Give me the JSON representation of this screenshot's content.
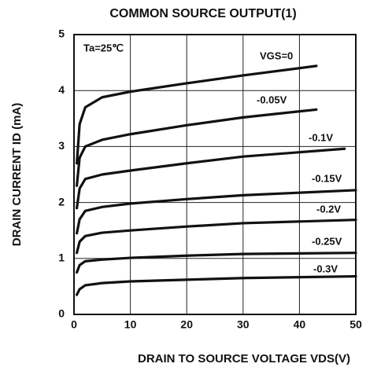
{
  "chart_data": {
    "type": "line",
    "title": "COMMON SOURCE OUTPUT(1)",
    "xlabel": "DRAIN TO SOURCE VOLTAGE  VDS(V)",
    "ylabel": "DRAIN CURRENT  ID (mA)",
    "annotation": "Ta=25℃",
    "xlim": [
      0,
      50
    ],
    "ylim": [
      0,
      5
    ],
    "xticks": [
      0,
      10,
      20,
      30,
      40,
      50
    ],
    "yticks": [
      0,
      1,
      2,
      3,
      4,
      5
    ],
    "grid": true,
    "series": [
      {
        "name": "VGS=0",
        "color": "#111111",
        "x": [
          0.5,
          1,
          2,
          5,
          10,
          20,
          30,
          43
        ],
        "values": [
          2.7,
          3.4,
          3.7,
          3.88,
          3.98,
          4.13,
          4.27,
          4.44
        ]
      },
      {
        "name": "-0.05V",
        "color": "#111111",
        "x": [
          0.5,
          1,
          2,
          5,
          10,
          20,
          30,
          43
        ],
        "values": [
          2.3,
          2.8,
          3.0,
          3.12,
          3.22,
          3.38,
          3.52,
          3.66
        ]
      },
      {
        "name": "-0.1V",
        "color": "#111111",
        "x": [
          0.5,
          1,
          2,
          5,
          10,
          20,
          30,
          48
        ],
        "values": [
          1.9,
          2.25,
          2.42,
          2.5,
          2.57,
          2.7,
          2.82,
          2.96
        ]
      },
      {
        "name": "-0.15V",
        "color": "#111111",
        "x": [
          0.5,
          1,
          2,
          5,
          10,
          20,
          30,
          50
        ],
        "values": [
          1.45,
          1.7,
          1.85,
          1.92,
          1.98,
          2.06,
          2.13,
          2.22
        ]
      },
      {
        "name": "-0.2V",
        "color": "#111111",
        "x": [
          0.5,
          1,
          2,
          5,
          10,
          20,
          30,
          50
        ],
        "values": [
          1.1,
          1.3,
          1.4,
          1.46,
          1.5,
          1.57,
          1.63,
          1.69
        ]
      },
      {
        "name": "-0.25V",
        "color": "#111111",
        "x": [
          0.5,
          1,
          2,
          5,
          10,
          20,
          30,
          50
        ],
        "values": [
          0.75,
          0.88,
          0.95,
          0.98,
          1.01,
          1.05,
          1.08,
          1.1
        ]
      },
      {
        "name": "-0.3V",
        "color": "#111111",
        "x": [
          0.5,
          1,
          2,
          5,
          10,
          20,
          30,
          50
        ],
        "values": [
          0.35,
          0.45,
          0.52,
          0.56,
          0.59,
          0.62,
          0.65,
          0.68
        ]
      }
    ]
  }
}
